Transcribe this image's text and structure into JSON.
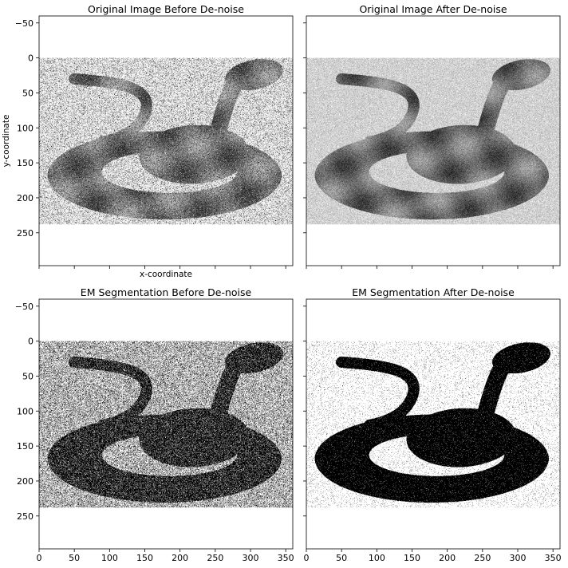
{
  "chart_data": [
    {
      "type": "image",
      "title": "Original Image Before De-noise",
      "xlabel": "x-coordinate",
      "ylabel": "y-coordinate",
      "xlim": [
        0,
        360
      ],
      "ylim": [
        297,
        -60
      ],
      "xticks": [
        0,
        50,
        100,
        150,
        200,
        250,
        300,
        350
      ],
      "yticks": [
        -50,
        0,
        50,
        100,
        150,
        200,
        250
      ],
      "image_extent": {
        "x": [
          0,
          360
        ],
        "y": [
          0,
          238
        ]
      },
      "render": "grayscale_salt_pepper",
      "show_xtick_labels": false,
      "show_ytick_labels": true
    },
    {
      "type": "image",
      "title": "Original Image After De-noise",
      "xlabel": "",
      "ylabel": "",
      "xlim": [
        0,
        360
      ],
      "ylim": [
        297,
        -60
      ],
      "xticks": [
        0,
        50,
        100,
        150,
        200,
        250,
        300,
        350
      ],
      "yticks": [
        -50,
        0,
        50,
        100,
        150,
        200,
        250
      ],
      "image_extent": {
        "x": [
          0,
          360
        ],
        "y": [
          0,
          238
        ]
      },
      "render": "grayscale_smooth",
      "show_xtick_labels": false,
      "show_ytick_labels": false
    },
    {
      "type": "image",
      "title": "EM Segmentation Before De-noise",
      "xlabel": "",
      "ylabel": "",
      "xlim": [
        0,
        360
      ],
      "ylim": [
        297,
        -60
      ],
      "xticks": [
        0,
        50,
        100,
        150,
        200,
        250,
        300,
        350
      ],
      "yticks": [
        -50,
        0,
        50,
        100,
        150,
        200,
        250
      ],
      "image_extent": {
        "x": [
          0,
          360
        ],
        "y": [
          0,
          238
        ]
      },
      "render": "binary_noisy",
      "show_xtick_labels": true,
      "show_ytick_labels": true
    },
    {
      "type": "image",
      "title": "EM Segmentation After De-noise",
      "xlabel": "",
      "ylabel": "",
      "xlim": [
        0,
        360
      ],
      "ylim": [
        297,
        -60
      ],
      "xticks": [
        0,
        50,
        100,
        150,
        200,
        250,
        300,
        350
      ],
      "yticks": [
        -50,
        0,
        50,
        100,
        150,
        200,
        250
      ],
      "image_extent": {
        "x": [
          0,
          360
        ],
        "y": [
          0,
          238
        ]
      },
      "render": "binary_clean",
      "show_xtick_labels": true,
      "show_ytick_labels": false
    }
  ]
}
